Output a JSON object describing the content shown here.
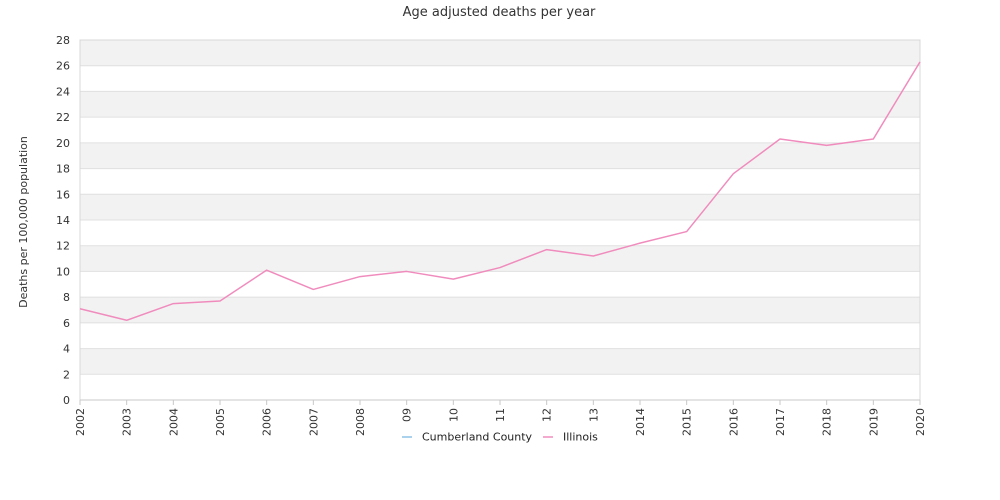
{
  "chart_data": {
    "type": "line",
    "title": "Age adjusted deaths per year",
    "ylabel": "Deaths per 100,000 population",
    "xlabel": "",
    "categories": [
      "2002",
      "2003",
      "2004",
      "2005",
      "2006",
      "2007",
      "2008",
      "09",
      "10",
      "11",
      "12",
      "13",
      "2014",
      "2015",
      "2016",
      "2017",
      "2018",
      "2019",
      "2020"
    ],
    "ylim": [
      0,
      28
    ],
    "yticks": [
      0,
      2,
      4,
      6,
      8,
      10,
      12,
      14,
      16,
      18,
      20,
      22,
      24,
      26,
      28
    ],
    "grid": "horizontal bands",
    "legend_position": "bottom",
    "series": [
      {
        "name": "Cumberland County",
        "color": "#8ec3e6",
        "values": [
          null,
          null,
          null,
          null,
          null,
          null,
          null,
          null,
          null,
          null,
          null,
          null,
          null,
          null,
          null,
          null,
          null,
          null,
          null
        ]
      },
      {
        "name": "Illinois",
        "color": "#f08cbd",
        "values": [
          7.1,
          6.2,
          7.5,
          7.7,
          10.1,
          8.6,
          9.6,
          10.0,
          9.4,
          10.3,
          11.7,
          11.2,
          12.2,
          13.1,
          17.6,
          20.3,
          19.8,
          20.3,
          26.3
        ]
      }
    ]
  }
}
